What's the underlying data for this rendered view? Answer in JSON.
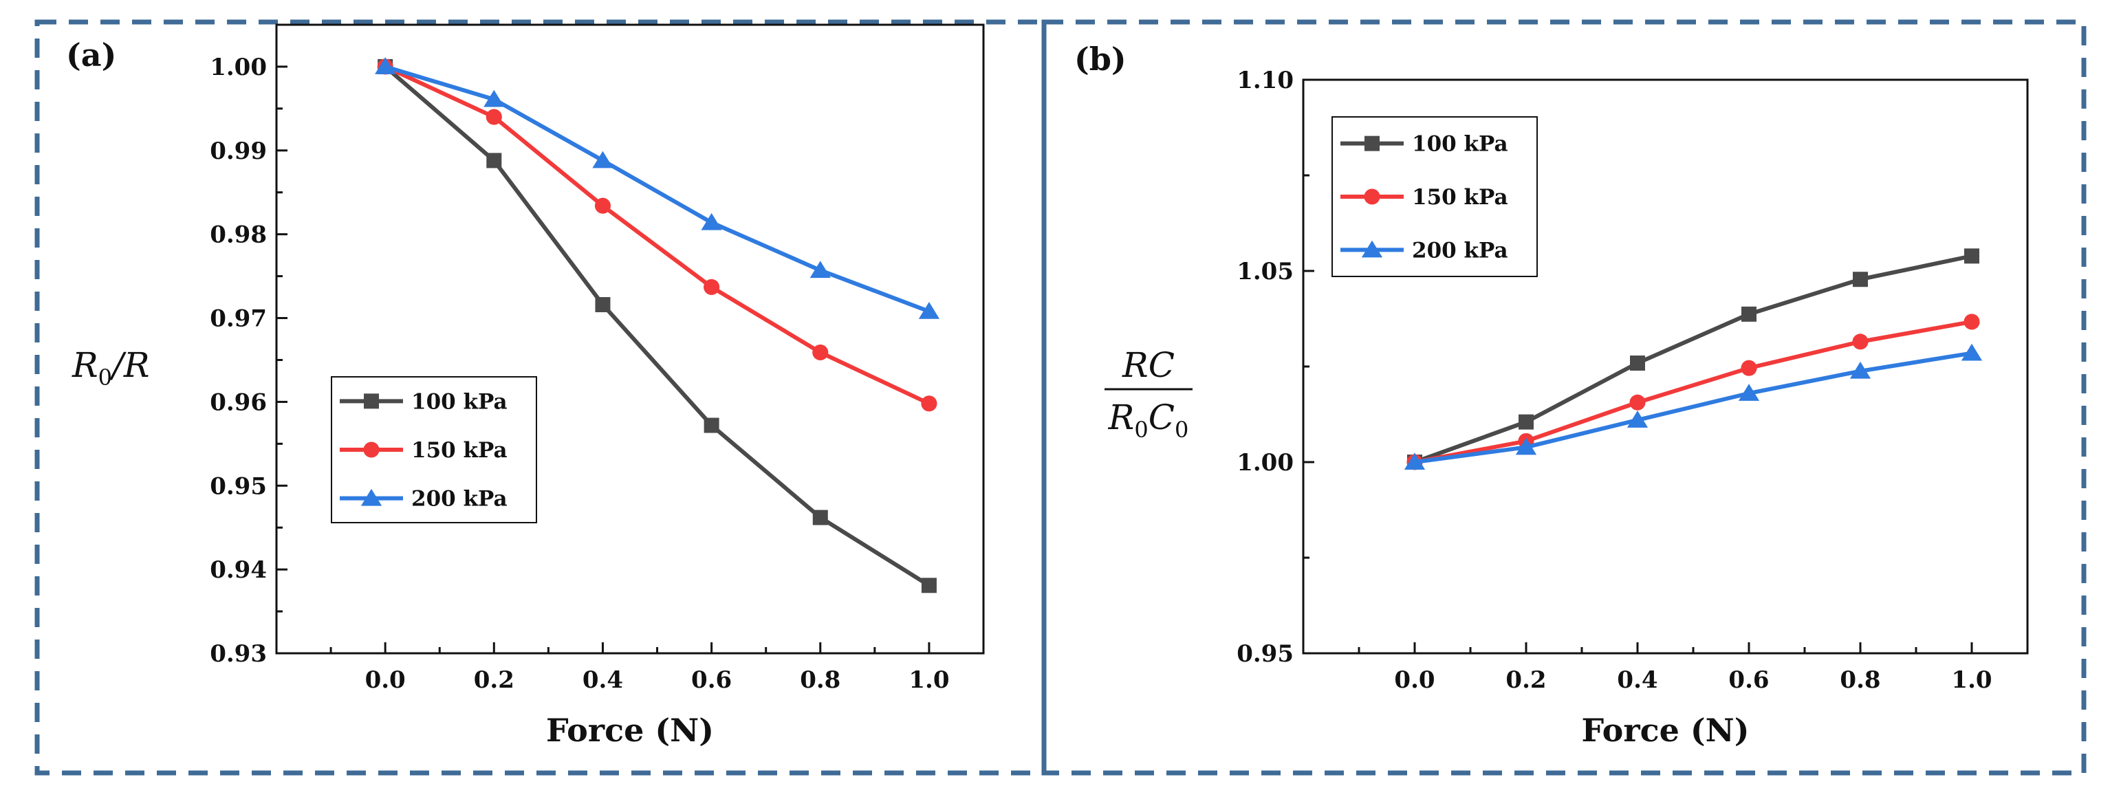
{
  "colors": {
    "frame": "#3f6b96",
    "series": [
      "#4a4a4a",
      "#f23a3a",
      "#2f7be0"
    ]
  },
  "panels": [
    {
      "label": "(a)",
      "ylabel": {
        "main": "R",
        "sub0": "0",
        "rest": "/R"
      }
    },
    {
      "label": "(b)",
      "ylabel": {
        "num": "RC",
        "den_r": "R",
        "den_sub1": "0",
        "den_c": "C",
        "den_sub2": "0"
      }
    }
  ],
  "chart_data": [
    {
      "type": "line",
      "panel": "(a)",
      "title": "",
      "xlabel": "Force (N)",
      "ylabel": "R0/R",
      "x": [
        0.0,
        0.2,
        0.4,
        0.6,
        0.8,
        1.0
      ],
      "xticks": [
        "0.0",
        "0.2",
        "0.4",
        "0.6",
        "0.8",
        "1.0"
      ],
      "xlim": [
        -0.2,
        1.1
      ],
      "ylim": [
        0.93,
        1.005
      ],
      "yticks": [
        "0.93",
        "0.94",
        "0.95",
        "0.96",
        "0.97",
        "0.98",
        "0.99",
        "1.00"
      ],
      "legend_position": "center-left",
      "series": [
        {
          "name": "100 kPa",
          "marker": "square",
          "values": [
            1.0,
            0.9888,
            0.9716,
            0.9572,
            0.9462,
            0.9381
          ]
        },
        {
          "name": "150 kPa",
          "marker": "circle",
          "values": [
            1.0,
            0.994,
            0.9834,
            0.9737,
            0.9659,
            0.9598
          ]
        },
        {
          "name": "200 kPa",
          "marker": "triangle",
          "values": [
            1.0,
            0.9961,
            0.9888,
            0.9814,
            0.9757,
            0.9708
          ]
        }
      ]
    },
    {
      "type": "line",
      "panel": "(b)",
      "title": "",
      "xlabel": "Force (N)",
      "ylabel": "RC / R0C0",
      "x": [
        0.0,
        0.2,
        0.4,
        0.6,
        0.8,
        1.0
      ],
      "xticks": [
        "0.0",
        "0.2",
        "0.4",
        "0.6",
        "0.8",
        "1.0"
      ],
      "xlim": [
        -0.2,
        1.1
      ],
      "ylim": [
        0.95,
        1.1
      ],
      "yticks": [
        "0.95",
        "1.00",
        "1.05",
        "1.10"
      ],
      "legend_position": "top-left",
      "series": [
        {
          "name": "100 kPa",
          "marker": "square",
          "values": [
            1.0,
            1.0105,
            1.0259,
            1.0387,
            1.0478,
            1.0539
          ]
        },
        {
          "name": "150 kPa",
          "marker": "circle",
          "values": [
            1.0,
            1.0055,
            1.0156,
            1.0246,
            1.0315,
            1.0367
          ]
        },
        {
          "name": "200 kPa",
          "marker": "triangle",
          "values": [
            1.0,
            1.0039,
            1.011,
            1.018,
            1.0238,
            1.0285
          ]
        }
      ]
    }
  ]
}
